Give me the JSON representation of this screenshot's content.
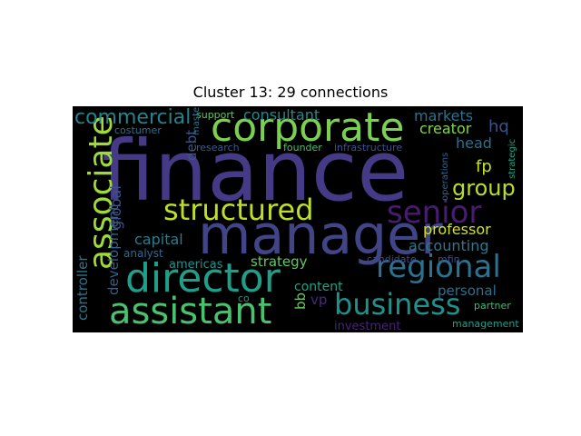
{
  "title": "Cluster 13: 29 connections",
  "words": [
    {
      "text": "finance",
      "color": "#453a86"
    },
    {
      "text": "manager",
      "color": "#414487"
    },
    {
      "text": "corporate",
      "color": "#7ad151"
    },
    {
      "text": "director",
      "color": "#1f9e89"
    },
    {
      "text": "assistant",
      "color": "#4ac16d"
    },
    {
      "text": "structured",
      "color": "#bddf26"
    },
    {
      "text": "associate",
      "color": "#a0da39"
    },
    {
      "text": "senior",
      "color": "#481c6e"
    },
    {
      "text": "regional",
      "color": "#2c728e"
    },
    {
      "text": "business",
      "color": "#21918c"
    },
    {
      "text": "commercial",
      "color": "#26828e"
    },
    {
      "text": "group",
      "color": "#b8de29"
    },
    {
      "text": "consultant",
      "color": "#23898e"
    },
    {
      "text": "markets",
      "color": "#2c728e"
    },
    {
      "text": "hq",
      "color": "#3b528b"
    },
    {
      "text": "creator",
      "color": "#84d44b"
    },
    {
      "text": "head",
      "color": "#2d708e"
    },
    {
      "text": "fp",
      "color": "#c8e020"
    },
    {
      "text": "professor",
      "color": "#d2e21b"
    },
    {
      "text": "accounting",
      "color": "#2a788e"
    },
    {
      "text": "capital",
      "color": "#287d8e"
    },
    {
      "text": "global",
      "color": "#3b528b"
    },
    {
      "text": "debt",
      "color": "#38588c"
    },
    {
      "text": "development",
      "color": "#355f8d"
    },
    {
      "text": "controller",
      "color": "#2a768e"
    },
    {
      "text": "analyst",
      "color": "#31688e"
    },
    {
      "text": "americas",
      "color": "#21918c"
    },
    {
      "text": "strategy",
      "color": "#5ec962"
    },
    {
      "text": "content",
      "color": "#1fa187"
    },
    {
      "text": "personal",
      "color": "#2e6e8e"
    },
    {
      "text": "bb",
      "color": "#65cb5e"
    },
    {
      "text": "vp",
      "color": "#482979"
    },
    {
      "text": "co",
      "color": "#1f968b"
    },
    {
      "text": "investment",
      "color": "#482475"
    },
    {
      "text": "management",
      "color": "#1f9e89"
    },
    {
      "text": "partner",
      "color": "#3dbc74"
    },
    {
      "text": "candidate",
      "color": "#3e4989"
    },
    {
      "text": "mfin",
      "color": "#3f4788"
    },
    {
      "text": "support",
      "color": "#5ec962"
    },
    {
      "text": "costumer",
      "color": "#2d708e"
    },
    {
      "text": "research",
      "color": "#365c8d"
    },
    {
      "text": "founder",
      "color": "#4ac16d"
    },
    {
      "text": "infrastructure",
      "color": "#3b528b"
    },
    {
      "text": "master",
      "color": "#2c728e"
    },
    {
      "text": "operations",
      "color": "#34618d"
    },
    {
      "text": "strategic",
      "color": "#20a386"
    }
  ]
}
